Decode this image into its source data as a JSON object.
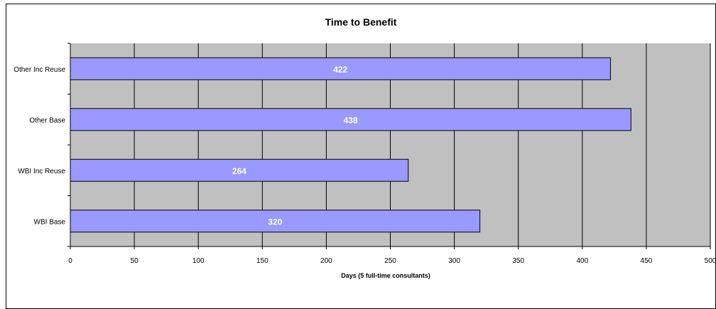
{
  "chart_data": {
    "type": "bar",
    "orientation": "horizontal",
    "title": "Time to Benefit",
    "xlabel": "Days (5 full-time consultants)",
    "ylabel": "",
    "categories": [
      "Other Inc Reuse",
      "Other Base",
      "WBI Inc Reuse",
      "WBI Base"
    ],
    "values": [
      422,
      438,
      264,
      320
    ],
    "data_labels": [
      "422",
      "438",
      "264",
      "320"
    ],
    "xlim": [
      0,
      500
    ],
    "x_ticks": [
      "0",
      "50",
      "100",
      "150",
      "200",
      "250",
      "300",
      "350",
      "400",
      "450",
      "500"
    ],
    "grid": "vertical",
    "legend": "none",
    "colors": {
      "plot_background": "#c0c0c0",
      "bar_fill": "#9999ff",
      "bar_stroke": "#000000",
      "gridline": "#000000",
      "data_label": "#ffffff"
    }
  }
}
